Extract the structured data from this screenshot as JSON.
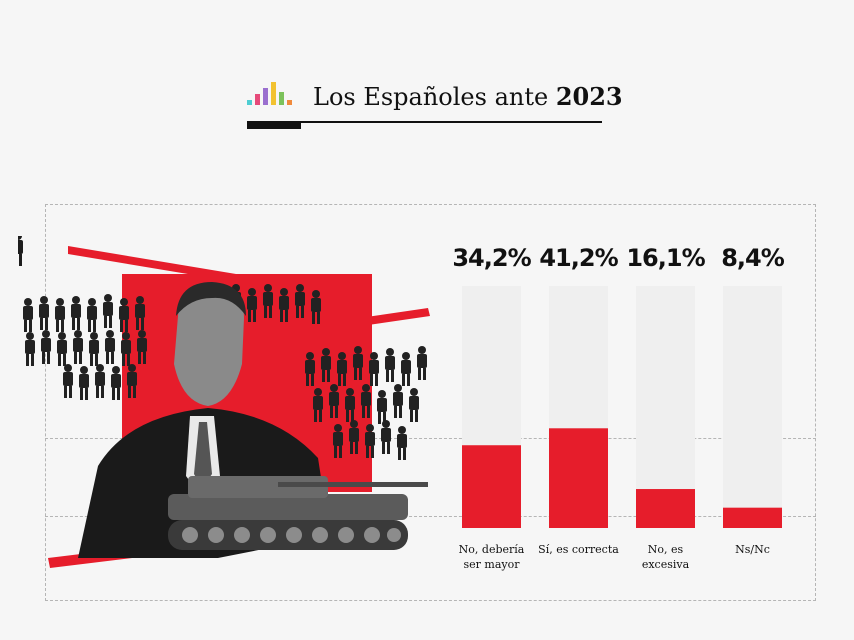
{
  "header": {
    "title_prefix": "Los Españoles ante ",
    "title_year": "2023"
  },
  "colors": {
    "accent": "#e61d2b",
    "track": "#efefef",
    "text": "#111111",
    "logo_bars": [
      "#4ecdd2",
      "#e64a7a",
      "#9a6fcf",
      "#f2c230",
      "#7cc25b",
      "#f08a3c"
    ]
  },
  "chart_data": {
    "type": "bar",
    "categories": [
      [
        "No, debería",
        "ser mayor"
      ],
      [
        "Sí, es correcta"
      ],
      [
        "No, es",
        "excesiva"
      ],
      [
        "Ns/Nc"
      ]
    ],
    "values": [
      34.2,
      41.2,
      16.1,
      8.4
    ],
    "value_labels": [
      "34,2%",
      "41,2%",
      "16,1%",
      "8,4%"
    ],
    "ylim": [
      0,
      100
    ],
    "grid": false,
    "legend": "none"
  },
  "illustration": {
    "description_icon": "collage-icon"
  }
}
